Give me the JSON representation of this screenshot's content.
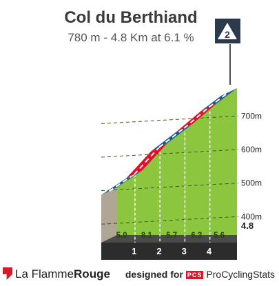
{
  "chart_data": {
    "type": "area",
    "title": "Col du Berthiand",
    "subtitle": "780 m - 4.8 Km at 6.1 %",
    "category_badge": "2",
    "km_markers": [
      "1",
      "2",
      "3",
      "4"
    ],
    "segments": [
      {
        "label": "5.0",
        "gradient": 5.0,
        "km_start": 0.0,
        "km_end": 1.0,
        "color": "#1a5b8e"
      },
      {
        "label": "8.1",
        "gradient": 8.1,
        "km_start": 1.0,
        "km_end": 2.0,
        "color": "#e0102d"
      },
      {
        "label": "5.7",
        "gradient": 5.7,
        "km_start": 2.0,
        "km_end": 3.0,
        "color": "#1a5b8e"
      },
      {
        "label": "6.3",
        "gradient": 6.3,
        "km_start": 3.0,
        "km_end": 4.0,
        "color": "#e0102d"
      },
      {
        "label": "5.6",
        "gradient": 5.6,
        "km_start": 4.0,
        "km_end": 4.8,
        "color": "#1a5b8e"
      }
    ],
    "elevation_profile": [
      {
        "km": 0.0,
        "alt": 487
      },
      {
        "km": 1.0,
        "alt": 537
      },
      {
        "km": 2.0,
        "alt": 618
      },
      {
        "km": 3.0,
        "alt": 675
      },
      {
        "km": 4.0,
        "alt": 738
      },
      {
        "km": 4.8,
        "alt": 783
      }
    ],
    "y_ticks": [
      "700m",
      "600m",
      "500m",
      "400m"
    ],
    "y_tick_values": [
      700,
      600,
      500,
      400
    ],
    "total_km_label": "4.8",
    "ylim": [
      345,
      785
    ],
    "colors": {
      "slope": "#8cc63f",
      "base": "#2c2c2c",
      "side": "#b1a595"
    }
  },
  "footer": {
    "brand_plain": "La Flamme",
    "brand_bold": "Rouge",
    "designed_for": "designed for",
    "pcs_badge": "PCS",
    "site": "ProCyclingStats"
  }
}
